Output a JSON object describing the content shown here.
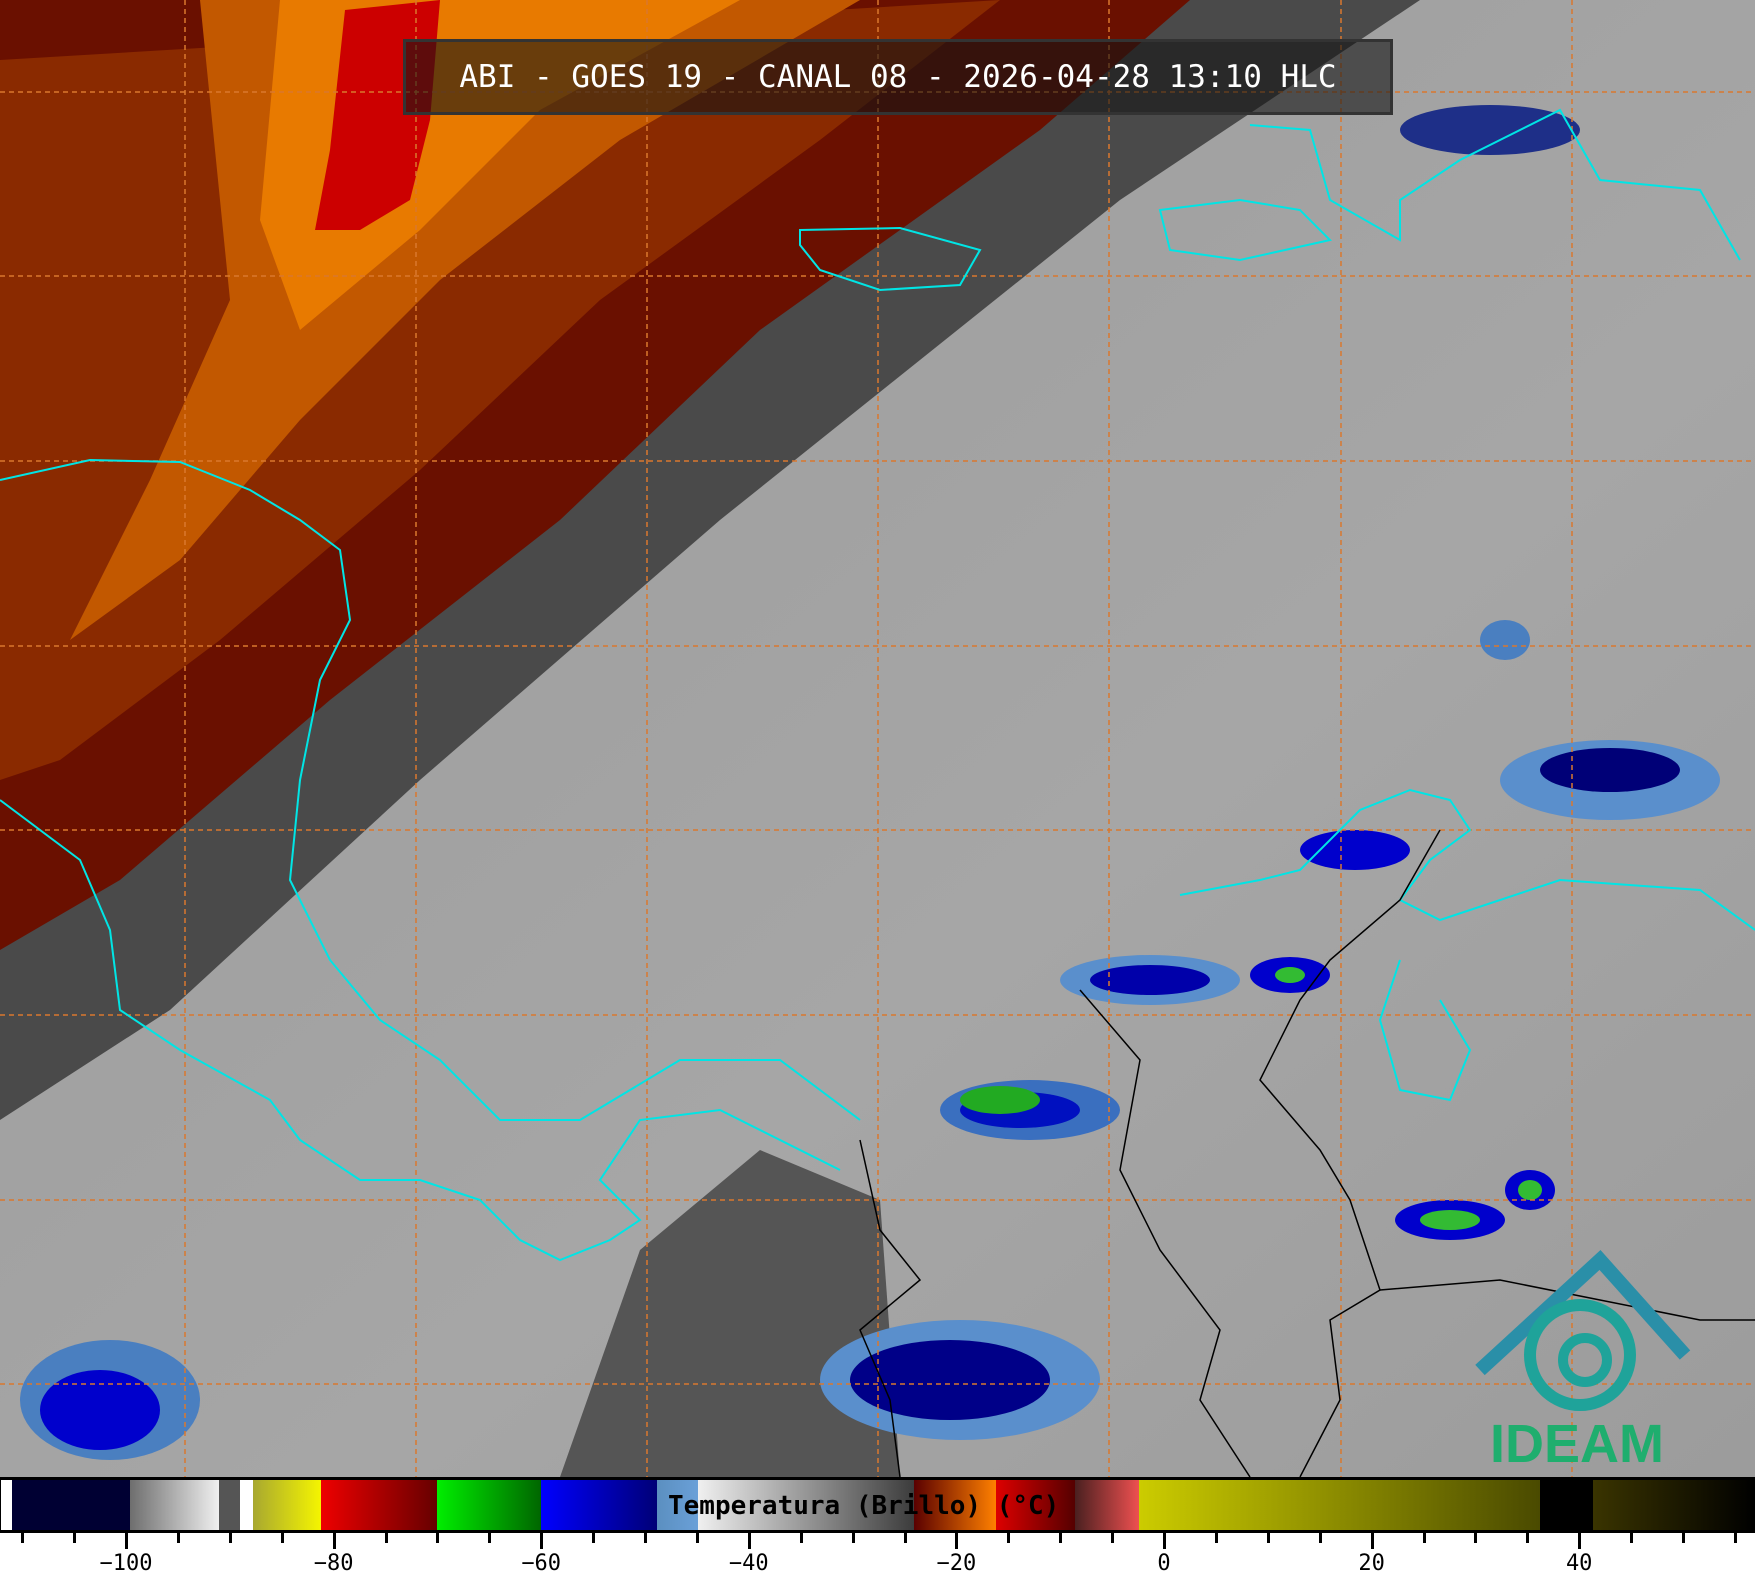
{
  "title": "ABI - GOES 19 - CANAL 08 - 2026-04-28 13:10 HLC",
  "colorbar": {
    "label": "Temperatura (Brillo) (°C)",
    "unit": "°C",
    "range": [
      -112,
      57
    ],
    "major_ticks": [
      -100,
      -80,
      -60,
      -40,
      -20,
      0,
      20,
      40
    ],
    "minor_step": 5,
    "segments": [
      {
        "from": -112,
        "to": -111,
        "colors": [
          "#ffffff",
          "#ffffff"
        ]
      },
      {
        "from": -111,
        "to": -99.6,
        "colors": [
          "#000033",
          "#000033"
        ]
      },
      {
        "from": -99.6,
        "to": -91,
        "colors": [
          "#6e6e6e",
          "#f0f0f0"
        ]
      },
      {
        "from": -91,
        "to": -89,
        "colors": [
          "#555555",
          "#555555"
        ]
      },
      {
        "from": -89,
        "to": -87.8,
        "colors": [
          "#ffffff",
          "#ffffff"
        ]
      },
      {
        "from": -87.8,
        "to": -81.2,
        "colors": [
          "#a8a830",
          "#f5f500"
        ]
      },
      {
        "from": -81.2,
        "to": -70,
        "colors": [
          "#ee0000",
          "#660000"
        ]
      },
      {
        "from": -70,
        "to": -60,
        "colors": [
          "#00ee00",
          "#006600"
        ]
      },
      {
        "from": -60,
        "to": -48.8,
        "colors": [
          "#0000ff",
          "#000077"
        ]
      },
      {
        "from": -48.8,
        "to": -44.9,
        "colors": [
          "#5b8fc0",
          "#6aa0d8"
        ]
      },
      {
        "from": -44.9,
        "to": -24.1,
        "colors": [
          "#f0f0f0",
          "#3c3c3c"
        ]
      },
      {
        "from": -24.1,
        "to": -16.2,
        "colors": [
          "#5a0000",
          "#ff8000"
        ]
      },
      {
        "from": -16.2,
        "to": -8.6,
        "colors": [
          "#dd0000",
          "#550000"
        ]
      },
      {
        "from": -8.6,
        "to": -2.4,
        "colors": [
          "#4a2020",
          "#ee5050"
        ]
      },
      {
        "from": -2.4,
        "to": 36.2,
        "colors": [
          "#cccc00",
          "#4a4a00"
        ]
      },
      {
        "from": 36.2,
        "to": 41.3,
        "colors": [
          "#000000",
          "#000000"
        ]
      },
      {
        "from": 41.3,
        "to": 57,
        "colors": [
          "#3a3400",
          "#000000"
        ]
      }
    ]
  },
  "logo": {
    "text": "IDEAM",
    "colors": {
      "roof": "#2a8fa8",
      "spiral": "#1fa39a",
      "text": "#1fae6e"
    }
  },
  "colors": {
    "grid": "#d9782e",
    "coastline": "#00e5e5",
    "borders": "#000000"
  }
}
